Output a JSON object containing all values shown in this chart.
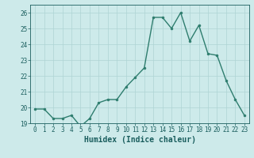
{
  "x": [
    0,
    1,
    2,
    3,
    4,
    5,
    6,
    7,
    8,
    9,
    10,
    11,
    12,
    13,
    14,
    15,
    16,
    17,
    18,
    19,
    20,
    21,
    22,
    23
  ],
  "y": [
    19.9,
    19.9,
    19.3,
    19.3,
    19.5,
    18.8,
    19.3,
    20.3,
    20.5,
    20.5,
    21.3,
    21.9,
    22.5,
    25.7,
    25.7,
    25.0,
    26.0,
    24.2,
    25.2,
    23.4,
    23.3,
    21.7,
    20.5,
    19.5
  ],
  "line_color": "#2e7d6e",
  "marker": "o",
  "marker_size": 2.0,
  "line_width": 1.0,
  "xlabel": "Humidex (Indice chaleur)",
  "ylim": [
    19,
    26.5
  ],
  "xlim": [
    -0.5,
    23.5
  ],
  "yticks": [
    19,
    20,
    21,
    22,
    23,
    24,
    25,
    26
  ],
  "xtick_labels": [
    "0",
    "1",
    "2",
    "3",
    "4",
    "5",
    "6",
    "7",
    "8",
    "9",
    "10",
    "11",
    "12",
    "13",
    "14",
    "15",
    "16",
    "17",
    "18",
    "19",
    "20",
    "21",
    "22",
    "23"
  ],
  "bg_color": "#cdeaea",
  "grid_color": "#aed4d4",
  "tick_color": "#1a5e5e",
  "label_color": "#1a5e5e",
  "xlabel_fontsize": 7,
  "tick_fontsize": 5.5
}
